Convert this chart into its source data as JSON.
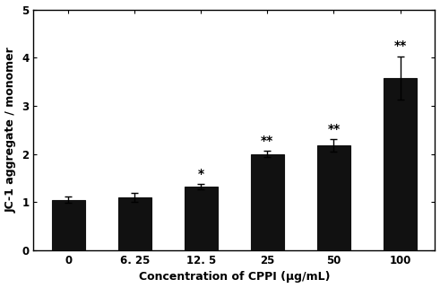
{
  "categories": [
    "0",
    "6. 25",
    "12. 5",
    "25",
    "50",
    "100"
  ],
  "values": [
    1.05,
    1.1,
    1.32,
    2.0,
    2.18,
    3.58
  ],
  "errors": [
    0.06,
    0.1,
    0.05,
    0.07,
    0.13,
    0.45
  ],
  "significance": [
    "",
    "",
    "*",
    "**",
    "**",
    "**"
  ],
  "bar_color": "#111111",
  "bar_edge_color": "#111111",
  "ylabel": "JC-1 aggregate / monomer",
  "xlabel": "Concentration of CPPI (μg/mL)",
  "ylim": [
    0,
    5
  ],
  "yticks": [
    0,
    1,
    2,
    3,
    4,
    5
  ],
  "title": "",
  "bar_width": 0.5,
  "fig_width": 4.91,
  "fig_height": 3.21,
  "sig_fontsize": 10,
  "axis_fontsize": 9,
  "tick_fontsize": 8.5,
  "background_color": "#ffffff"
}
